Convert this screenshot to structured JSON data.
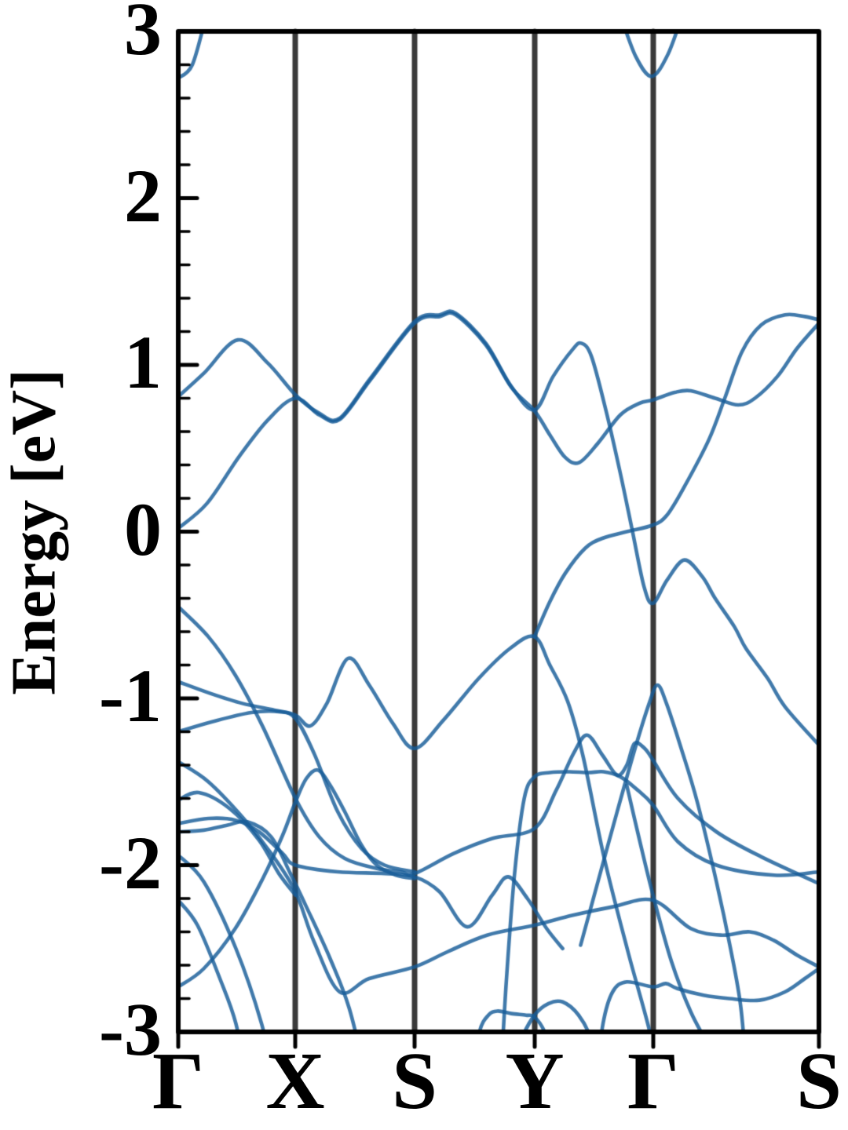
{
  "chart_data": {
    "type": "line",
    "title": "",
    "xlabel": "",
    "ylabel": "Energy [eV]",
    "ylim": [
      -3,
      3
    ],
    "y_ticks_major": [
      3,
      2,
      1,
      0,
      -1,
      -2,
      -3
    ],
    "y_minor_step": 0.2,
    "grid": "vertical-kpoint-lines-only",
    "legend": "none",
    "band_color": "rgba(23,93,153,0.82)",
    "band_line_width": 4.6,
    "kline_color": "#3a3a3a",
    "kline_width": 7,
    "frame_color": "#000000",
    "frame_width": 6,
    "kpath": {
      "labels": [
        "Γ",
        "X",
        "S",
        "Y",
        "Γ",
        "S"
      ],
      "positions": [
        0,
        0.1826,
        0.3689,
        0.5564,
        0.7414,
        1.0
      ]
    },
    "bands": [
      {
        "name": "conduction-gamma1",
        "points": [
          [
            0,
            2.72
          ],
          [
            0.022,
            2.8
          ],
          [
            0.044,
            3.1
          ]
        ]
      },
      {
        "name": "conduction-gamma2",
        "points": [
          [
            0.69,
            3.1
          ],
          [
            0.714,
            2.85
          ],
          [
            0.739,
            2.73
          ],
          [
            0.764,
            2.86
          ],
          [
            0.787,
            3.1
          ]
        ]
      },
      {
        "name": "band-A",
        "points": [
          [
            0,
            0.81
          ],
          [
            0.04,
            0.95
          ],
          [
            0.093,
            1.15
          ],
          [
            0.14,
            1.01
          ],
          [
            0.183,
            0.82
          ],
          [
            0.22,
            0.71
          ],
          [
            0.252,
            0.68
          ],
          [
            0.3,
            0.92
          ],
          [
            0.369,
            1.26
          ],
          [
            0.408,
            1.3
          ],
          [
            0.433,
            1.31
          ],
          [
            0.48,
            1.13
          ],
          [
            0.52,
            0.87
          ],
          [
            0.556,
            0.73
          ],
          [
            0.585,
            0.93
          ],
          [
            0.615,
            1.09
          ],
          [
            0.629,
            1.13
          ],
          [
            0.645,
            1.05
          ],
          [
            0.668,
            0.72
          ],
          [
            0.69,
            0.35
          ],
          [
            0.708,
            0.02
          ],
          [
            0.727,
            -0.33
          ],
          [
            0.741,
            -0.43
          ],
          [
            0.763,
            -0.29
          ],
          [
            0.79,
            -0.17
          ],
          [
            0.818,
            -0.27
          ],
          [
            0.838,
            -0.4
          ],
          [
            0.868,
            -0.57
          ],
          [
            0.886,
            -0.7
          ],
          [
            0.92,
            -0.88
          ],
          [
            0.947,
            -1.05
          ],
          [
            1,
            -1.28
          ]
        ]
      },
      {
        "name": "band-B",
        "points": [
          [
            0,
            0.02
          ],
          [
            0.045,
            0.17
          ],
          [
            0.095,
            0.45
          ],
          [
            0.14,
            0.67
          ],
          [
            0.183,
            0.8
          ],
          [
            0.22,
            0.7
          ],
          [
            0.252,
            0.672
          ],
          [
            0.3,
            0.91
          ],
          [
            0.369,
            1.25
          ],
          [
            0.408,
            1.29
          ],
          [
            0.433,
            1.3
          ],
          [
            0.48,
            1.12
          ],
          [
            0.52,
            0.865
          ],
          [
            0.556,
            0.725
          ],
          [
            0.58,
            0.58
          ],
          [
            0.604,
            0.445
          ],
          [
            0.626,
            0.415
          ],
          [
            0.655,
            0.53
          ],
          [
            0.69,
            0.7
          ],
          [
            0.72,
            0.77
          ],
          [
            0.741,
            0.79
          ],
          [
            0.775,
            0.835
          ],
          [
            0.8,
            0.845
          ],
          [
            0.838,
            0.8
          ],
          [
            0.874,
            0.76
          ],
          [
            0.9,
            0.8
          ],
          [
            0.935,
            0.93
          ],
          [
            0.966,
            1.1
          ],
          [
            1,
            1.25
          ]
        ]
      },
      {
        "name": "band-C",
        "points": [
          [
            0.556,
            -0.63
          ],
          [
            0.58,
            -0.42
          ],
          [
            0.604,
            -0.25
          ],
          [
            0.635,
            -0.1
          ],
          [
            0.662,
            -0.04
          ],
          [
            0.7,
            0.0
          ],
          [
            0.741,
            0.04
          ],
          [
            0.763,
            0.1
          ],
          [
            0.79,
            0.27
          ],
          [
            0.828,
            0.55
          ],
          [
            0.853,
            0.8
          ],
          [
            0.88,
            1.08
          ],
          [
            0.91,
            1.24
          ],
          [
            0.947,
            1.3
          ],
          [
            0.978,
            1.29
          ],
          [
            1,
            1.27
          ]
        ]
      },
      {
        "name": "valence-1",
        "points": [
          [
            0,
            -0.9
          ],
          [
            0.05,
            -0.97
          ],
          [
            0.1,
            -1.03
          ],
          [
            0.15,
            -1.07
          ],
          [
            0.183,
            -1.1
          ],
          [
            0.206,
            -1.165
          ],
          [
            0.232,
            -1.03
          ],
          [
            0.265,
            -0.76
          ],
          [
            0.298,
            -0.92
          ],
          [
            0.335,
            -1.15
          ],
          [
            0.369,
            -1.3
          ],
          [
            0.414,
            -1.13
          ],
          [
            0.469,
            -0.88
          ],
          [
            0.518,
            -0.7
          ],
          [
            0.556,
            -0.63
          ],
          [
            0.58,
            -0.8
          ],
          [
            0.608,
            -1.02
          ],
          [
            0.632,
            -1.35
          ],
          [
            0.665,
            -1.96
          ],
          [
            0.702,
            -2.52
          ],
          [
            0.736,
            -3.0
          ],
          [
            0.75,
            -3.3
          ]
        ]
      },
      {
        "name": "valence-2",
        "points": [
          [
            0,
            -1.2
          ],
          [
            0.053,
            -1.14
          ],
          [
            0.114,
            -1.085
          ],
          [
            0.157,
            -1.08
          ],
          [
            0.183,
            -1.12
          ],
          [
            0.212,
            -1.33
          ],
          [
            0.249,
            -1.68
          ],
          [
            0.286,
            -1.9
          ],
          [
            0.322,
            -2.0
          ],
          [
            0.369,
            -2.04
          ]
        ]
      },
      {
        "name": "valence-3",
        "points": [
          [
            0,
            -0.45
          ],
          [
            0.047,
            -0.63
          ],
          [
            0.089,
            -0.86
          ],
          [
            0.132,
            -1.17
          ],
          [
            0.183,
            -1.6
          ],
          [
            0.22,
            -1.83
          ],
          [
            0.26,
            -1.96
          ],
          [
            0.31,
            -2.02
          ],
          [
            0.347,
            -2.04
          ],
          [
            0.369,
            -2.05
          ],
          [
            0.43,
            -1.93
          ],
          [
            0.49,
            -1.84
          ],
          [
            0.556,
            -1.78
          ],
          [
            0.59,
            -1.55
          ],
          [
            0.617,
            -1.33
          ],
          [
            0.638,
            -1.22
          ],
          [
            0.662,
            -1.34
          ],
          [
            0.685,
            -1.46
          ],
          [
            0.7,
            -1.4
          ],
          [
            0.712,
            -1.27
          ],
          [
            0.728,
            -1.3
          ],
          [
            0.741,
            -1.37
          ],
          [
            0.78,
            -1.6
          ],
          [
            0.84,
            -1.8
          ],
          [
            0.91,
            -1.95
          ],
          [
            1,
            -2.11
          ]
        ]
      },
      {
        "name": "valence-4",
        "points": [
          [
            0,
            -1.38
          ],
          [
            0.047,
            -1.5
          ],
          [
            0.102,
            -1.72
          ],
          [
            0.145,
            -1.93
          ],
          [
            0.183,
            -2.16
          ],
          [
            0.212,
            -2.46
          ],
          [
            0.252,
            -2.76
          ],
          [
            0.298,
            -2.68
          ],
          [
            0.369,
            -2.61
          ],
          [
            0.42,
            -2.52
          ],
          [
            0.482,
            -2.42
          ],
          [
            0.556,
            -2.36
          ],
          [
            0.616,
            -2.3
          ],
          [
            0.678,
            -2.25
          ],
          [
            0.741,
            -2.21
          ],
          [
            0.8,
            -2.38
          ],
          [
            0.849,
            -2.42
          ],
          [
            0.892,
            -2.4
          ],
          [
            0.929,
            -2.45
          ],
          [
            0.966,
            -2.54
          ],
          [
            1,
            -2.61
          ]
        ]
      },
      {
        "name": "valence-5",
        "points": [
          [
            0,
            -1.75
          ],
          [
            0.047,
            -1.72
          ],
          [
            0.089,
            -1.73
          ],
          [
            0.126,
            -1.8
          ],
          [
            0.163,
            -1.93
          ],
          [
            0.183,
            -2.0
          ],
          [
            0.249,
            -2.04
          ],
          [
            0.322,
            -2.05
          ],
          [
            0.369,
            -2.07
          ],
          [
            0.408,
            -2.16
          ],
          [
            0.451,
            -2.37
          ],
          [
            0.49,
            -2.18
          ],
          [
            0.515,
            -2.07
          ],
          [
            0.545,
            -2.2
          ],
          [
            0.575,
            -2.38
          ],
          [
            0.6,
            -2.5
          ]
        ]
      },
      {
        "name": "valence-6",
        "points": [
          [
            0,
            -1.8
          ],
          [
            0.04,
            -1.79
          ],
          [
            0.077,
            -1.76
          ],
          [
            0.108,
            -1.74
          ],
          [
            0.145,
            -1.83
          ],
          [
            0.175,
            -2.05
          ],
          [
            0.2,
            -2.25
          ],
          [
            0.237,
            -2.56
          ],
          [
            0.267,
            -2.86
          ],
          [
            0.295,
            -3.3
          ]
        ]
      },
      {
        "name": "valence-7",
        "points": [
          [
            0,
            -1.61
          ],
          [
            0.032,
            -1.565
          ],
          [
            0.08,
            -1.66
          ],
          [
            0.126,
            -1.85
          ],
          [
            0.157,
            -2.05
          ],
          [
            0.183,
            -2.18
          ]
        ]
      },
      {
        "name": "valence-8",
        "points": [
          [
            0,
            -1.94
          ],
          [
            0.04,
            -2.1
          ],
          [
            0.09,
            -2.5
          ],
          [
            0.13,
            -2.95
          ],
          [
            0.15,
            -3.3
          ]
        ]
      },
      {
        "name": "valence-9",
        "points": [
          [
            0,
            -2.21
          ],
          [
            0.03,
            -2.36
          ],
          [
            0.065,
            -2.68
          ],
          [
            0.09,
            -2.95
          ],
          [
            0.107,
            -3.3
          ]
        ]
      },
      {
        "name": "valence-10",
        "points": [
          [
            0,
            -2.73
          ],
          [
            0.04,
            -2.62
          ],
          [
            0.089,
            -2.38
          ],
          [
            0.132,
            -2.08
          ],
          [
            0.163,
            -1.82
          ],
          [
            0.183,
            -1.62
          ],
          [
            0.2,
            -1.48
          ],
          [
            0.218,
            -1.43
          ],
          [
            0.237,
            -1.52
          ],
          [
            0.26,
            -1.68
          ],
          [
            0.286,
            -1.88
          ],
          [
            0.31,
            -2.0
          ],
          [
            0.34,
            -2.06
          ],
          [
            0.369,
            -2.08
          ]
        ]
      },
      {
        "name": "valence-11",
        "points": [
          [
            0.503,
            -3.3
          ],
          [
            0.512,
            -2.7
          ],
          [
            0.525,
            -2.05
          ],
          [
            0.54,
            -1.6
          ],
          [
            0.556,
            -1.47
          ],
          [
            0.58,
            -1.445
          ],
          [
            0.61,
            -1.44
          ],
          [
            0.64,
            -1.445
          ],
          [
            0.664,
            -1.44
          ],
          [
            0.69,
            -1.47
          ],
          [
            0.714,
            -1.54
          ],
          [
            0.741,
            -1.64
          ],
          [
            0.78,
            -1.86
          ],
          [
            0.84,
            -2.0
          ],
          [
            0.93,
            -2.06
          ],
          [
            1,
            -2.04
          ]
        ]
      },
      {
        "name": "valence-12",
        "points": [
          [
            0.455,
            -3.3
          ],
          [
            0.47,
            -3.0
          ],
          [
            0.484,
            -2.9
          ],
          [
            0.498,
            -2.875
          ],
          [
            0.52,
            -2.89
          ],
          [
            0.543,
            -2.9
          ],
          [
            0.556,
            -2.91
          ],
          [
            0.572,
            -3.0
          ],
          [
            0.585,
            -3.15
          ],
          [
            0.592,
            -3.3
          ]
        ]
      },
      {
        "name": "valence-13",
        "points": [
          [
            0.515,
            -3.3
          ],
          [
            0.535,
            -3.05
          ],
          [
            0.556,
            -2.9
          ],
          [
            0.578,
            -2.83
          ],
          [
            0.6,
            -2.82
          ],
          [
            0.625,
            -2.9
          ],
          [
            0.645,
            -3.05
          ],
          [
            0.658,
            -3.3
          ]
        ]
      },
      {
        "name": "valence-14",
        "points": [
          [
            0.652,
            -3.3
          ],
          [
            0.663,
            -2.95
          ],
          [
            0.678,
            -2.76
          ],
          [
            0.7,
            -2.7
          ],
          [
            0.741,
            -2.73
          ],
          [
            0.761,
            -2.71
          ],
          [
            0.779,
            -2.74
          ],
          [
            0.82,
            -2.78
          ],
          [
            0.86,
            -2.8
          ],
          [
            0.907,
            -2.81
          ],
          [
            0.947,
            -2.76
          ],
          [
            0.978,
            -2.68
          ],
          [
            1,
            -2.62
          ]
        ]
      },
      {
        "name": "valence-15",
        "points": [
          [
            0.7,
            -1.52
          ],
          [
            0.72,
            -1.85
          ],
          [
            0.741,
            -2.18
          ],
          [
            0.77,
            -2.58
          ],
          [
            0.8,
            -2.88
          ],
          [
            0.83,
            -3.1
          ],
          [
            0.853,
            -3.3
          ]
        ]
      },
      {
        "name": "valence-16",
        "points": [
          [
            0.628,
            -2.48
          ],
          [
            0.655,
            -2.1
          ],
          [
            0.685,
            -1.68
          ],
          [
            0.713,
            -1.3
          ],
          [
            0.735,
            -1.03
          ],
          [
            0.748,
            -0.92
          ],
          [
            0.762,
            -1.03
          ],
          [
            0.785,
            -1.3
          ],
          [
            0.81,
            -1.62
          ],
          [
            0.84,
            -2.1
          ],
          [
            0.862,
            -2.5
          ],
          [
            0.878,
            -2.85
          ],
          [
            0.888,
            -3.3
          ]
        ]
      }
    ]
  }
}
